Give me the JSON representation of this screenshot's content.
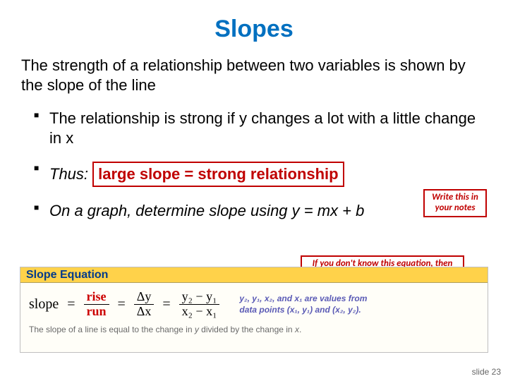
{
  "title": "Slopes",
  "intro": "The strength of a relationship between two variables is shown by the slope of the line",
  "bullets": {
    "b1": "The relationship is strong if y changes a lot with a little change in x",
    "b2_prefix": "Thus: ",
    "b2_highlight": "large slope = strong relationship",
    "b3": "On a graph, determine slope using y = mx + b"
  },
  "notes": {
    "n1": "Write this in your notes",
    "n2": "If you don't know this equation, then write this in your notes"
  },
  "equation": {
    "header": "Slope Equation",
    "label": "slope",
    "frac1": {
      "num": "rise",
      "den": "run"
    },
    "frac2": {
      "num": "Δy",
      "den": "Δx"
    },
    "frac3": {
      "num": "y₂ − y₁",
      "den": "x₂ − x₁"
    },
    "side1": "y₂, y₁, x₂, and x₁ are values from",
    "side2": "data points (x₁, y₁) and (x₂, y₂).",
    "caption_pre": "The slope of a line is equal to the change in ",
    "caption_y": "y",
    "caption_mid": " divided by the change in ",
    "caption_x": "x",
    "caption_end": "."
  },
  "footer": {
    "slide": "slide 23"
  },
  "colors": {
    "title": "#0070c0",
    "highlight": "#c00000",
    "eq_header_bg": "#ffd24a",
    "eq_header_text": "#003a8c",
    "frac_red": "#cc0000",
    "side_note": "#5a5ab5",
    "caption": "#6a6a6a"
  }
}
